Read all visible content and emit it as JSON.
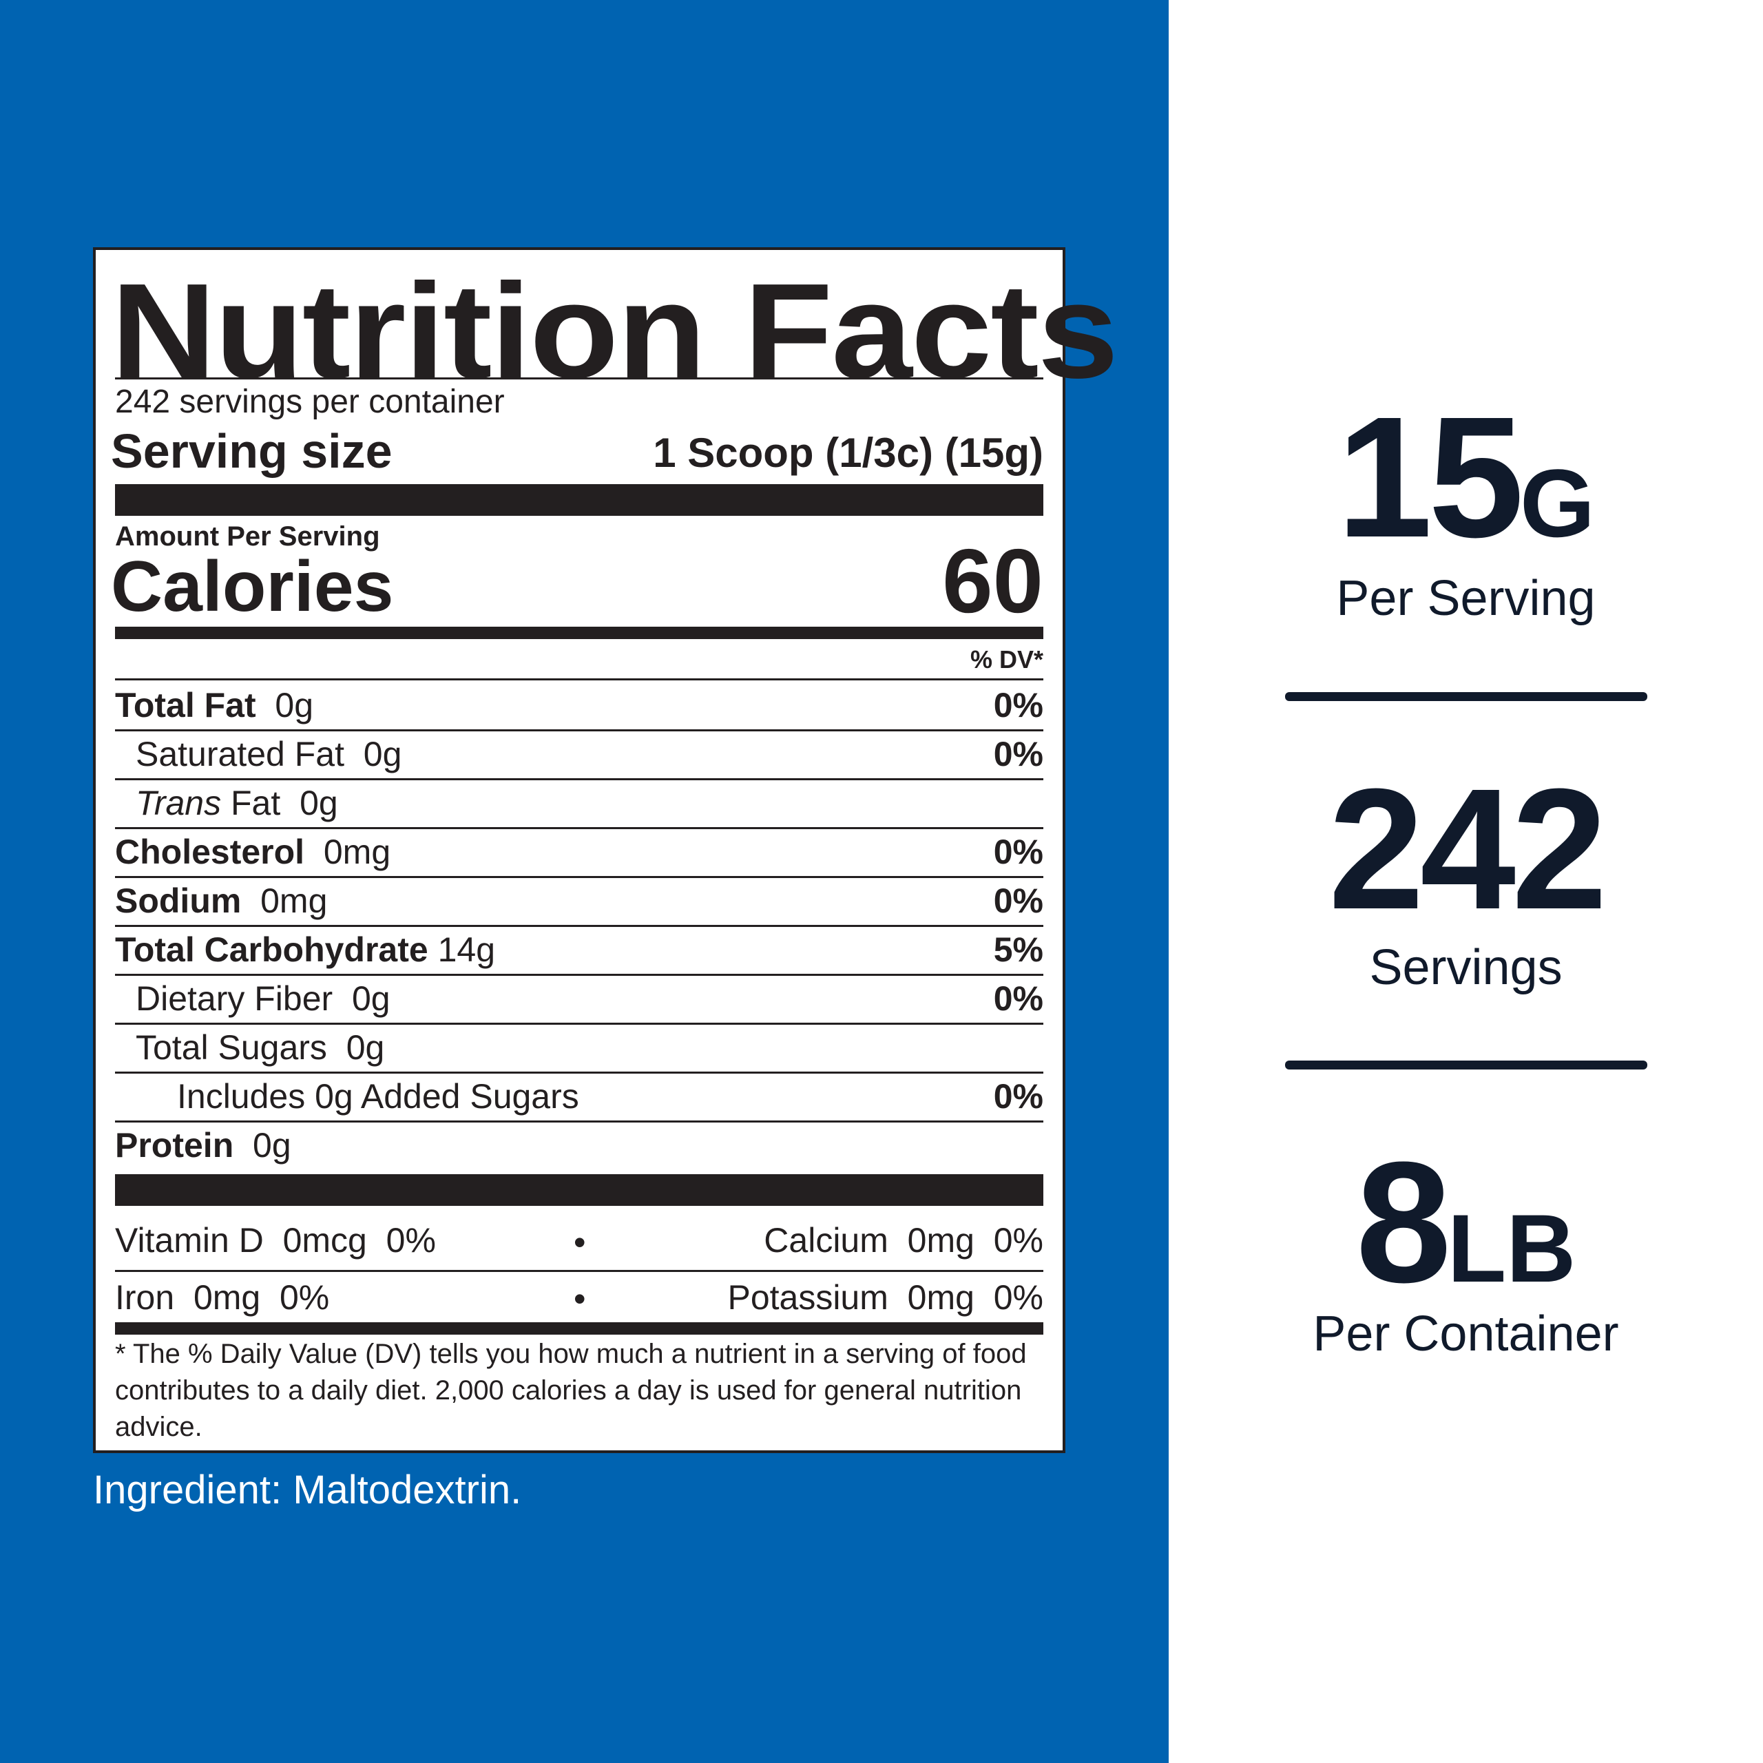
{
  "label": {
    "title": "Nutrition Facts",
    "servings_per_container": "242 servings per container",
    "serving_size_label": "Serving size",
    "serving_size_value": "1 Scoop (1/3c) (15g)",
    "amount_per_serving": "Amount Per Serving",
    "calories_label": "Calories",
    "calories_value": "60",
    "dv_header": "% DV*",
    "nutrients": [
      {
        "name": "Total Fat",
        "amount": "0g",
        "dv": "0%"
      },
      {
        "name": "Saturated Fat",
        "amount": "0g",
        "dv": "0%"
      },
      {
        "name": "Trans",
        "name_rest": "Fat",
        "amount": "0g",
        "dv": ""
      },
      {
        "name": "Cholesterol",
        "amount": "0mg",
        "dv": "0%"
      },
      {
        "name": "Sodium",
        "amount": "0mg",
        "dv": "0%"
      },
      {
        "name": "Total Carbohydrate",
        "amount": "14g",
        "dv": "5%"
      },
      {
        "name": "Dietary Fiber",
        "amount": "0g",
        "dv": "0%"
      },
      {
        "name": "Total Sugars",
        "amount": "0g",
        "dv": ""
      },
      {
        "name": "Includes 0g Added Sugars",
        "amount": "",
        "dv": "0%"
      },
      {
        "name": "Protein",
        "amount": "0g",
        "dv": ""
      }
    ],
    "vitamins": [
      {
        "left": "Vitamin D  0mcg  0%",
        "right": "Calcium  0mg  0%"
      },
      {
        "left": "Iron  0mg  0%",
        "right": "Potassium  0mg  0%"
      }
    ],
    "bullet": "•",
    "footnote": "* The % Daily Value (DV) tells you how much a nutrient in a serving of food contributes to a daily diet. 2,000 calories a day is used for general nutrition advice."
  },
  "ingredient": "Ingredient: Maltodextrin.",
  "stats": [
    {
      "number": "15",
      "unit": "G",
      "caption": "Per Serving"
    },
    {
      "number": "242",
      "unit": "",
      "caption": "Servings"
    },
    {
      "number": "8",
      "unit": "LB",
      "caption": "Per Container"
    }
  ],
  "colors": {
    "panel_blue": "#0063b1",
    "label_ink": "#231f20",
    "stat_ink": "#101a2b"
  }
}
